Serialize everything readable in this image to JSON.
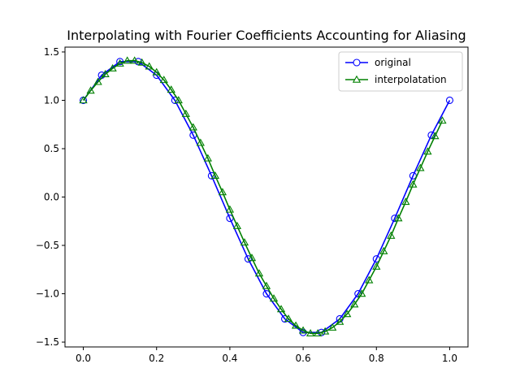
{
  "chart_data": {
    "type": "line",
    "title": "Interpolating with Fourier Coefficients Accounting for Aliasing",
    "xlabel": "",
    "ylabel": "",
    "xlim": [
      -0.05,
      1.05
    ],
    "ylim": [
      -1.55,
      1.55
    ],
    "xticks": [
      0.0,
      0.2,
      0.4,
      0.6,
      0.8,
      1.0
    ],
    "xtick_labels": [
      "0.0",
      "0.2",
      "0.4",
      "0.6",
      "0.8",
      "1.0"
    ],
    "yticks": [
      -1.5,
      -1.0,
      -0.5,
      0.0,
      0.5,
      1.0,
      1.5
    ],
    "ytick_labels": [
      "−1.5",
      "−1.0",
      "−0.5",
      "0.0",
      "0.5",
      "1.0",
      "1.5"
    ],
    "grid": false,
    "legend_position": "top-right",
    "series": [
      {
        "name": "original",
        "color": "#0000ff",
        "marker": "circle",
        "x": [
          0.0,
          0.05,
          0.1,
          0.15,
          0.2,
          0.25,
          0.3,
          0.35,
          0.4,
          0.45,
          0.5,
          0.55,
          0.6,
          0.65,
          0.7,
          0.75,
          0.8,
          0.85,
          0.9,
          0.95,
          1.0
        ],
        "y": [
          1.0,
          1.26,
          1.4,
          1.4,
          1.26,
          1.0,
          0.64,
          0.22,
          -0.22,
          -0.64,
          -1.0,
          -1.26,
          -1.4,
          -1.4,
          -1.26,
          -1.0,
          -0.64,
          -0.22,
          0.22,
          0.64,
          1.0
        ]
      },
      {
        "name": "interpolatation",
        "color": "#008000",
        "marker": "triangle",
        "x": [
          0.0,
          0.02,
          0.04,
          0.06,
          0.08,
          0.1,
          0.12,
          0.14,
          0.16,
          0.18,
          0.2,
          0.22,
          0.24,
          0.26,
          0.28,
          0.3,
          0.32,
          0.34,
          0.36,
          0.38,
          0.4,
          0.42,
          0.44,
          0.46,
          0.48,
          0.5,
          0.52,
          0.54,
          0.56,
          0.58,
          0.6,
          0.62,
          0.64,
          0.66,
          0.68,
          0.7,
          0.72,
          0.74,
          0.76,
          0.78,
          0.8,
          0.82,
          0.84,
          0.86,
          0.88,
          0.9,
          0.92,
          0.94,
          0.96,
          0.98
        ],
        "y": [
          1.0,
          1.1,
          1.19,
          1.27,
          1.33,
          1.38,
          1.41,
          1.41,
          1.39,
          1.35,
          1.29,
          1.21,
          1.11,
          1.0,
          0.86,
          0.72,
          0.56,
          0.4,
          0.22,
          0.05,
          -0.13,
          -0.3,
          -0.47,
          -0.63,
          -0.79,
          -0.92,
          -1.05,
          -1.16,
          -1.26,
          -1.33,
          -1.38,
          -1.41,
          -1.41,
          -1.39,
          -1.35,
          -1.29,
          -1.21,
          -1.11,
          -1.0,
          -0.86,
          -0.72,
          -0.56,
          -0.4,
          -0.22,
          -0.05,
          0.13,
          0.3,
          0.47,
          0.63,
          0.79
        ]
      }
    ]
  }
}
